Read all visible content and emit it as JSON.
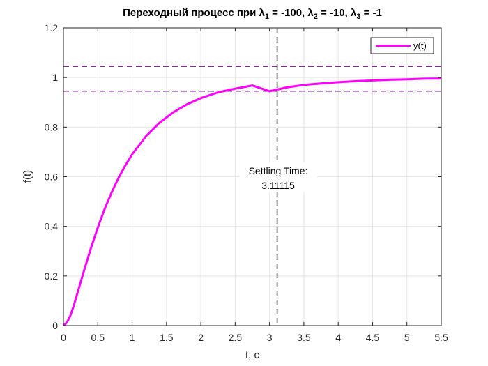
{
  "chart_data": {
    "type": "line",
    "title_parts": {
      "prefix": "Переходный процесс при λ",
      "sub1": "1",
      "mid1": " = -100, λ",
      "sub2": "2",
      "mid2": " = -10, λ",
      "sub3": "3",
      "suffix": " = -1"
    },
    "xlabel": "t, c",
    "ylabel": "f(t)",
    "xlim": [
      0,
      5.5
    ],
    "ylim": [
      0,
      1.2
    ],
    "xticks": [
      "0",
      "0.5",
      "1",
      "1.5",
      "2",
      "2.5",
      "3",
      "3.5",
      "4",
      "4.5",
      "5",
      "5.5"
    ],
    "yticks": [
      "0",
      "0.2",
      "0.4",
      "0.6",
      "0.8",
      "1",
      "1.2"
    ],
    "grid": true,
    "legend_position": "top-right",
    "series": [
      {
        "name": "y(t)",
        "color": "#ff00ff",
        "x": [
          0,
          0.05,
          0.1,
          0.15,
          0.2,
          0.3,
          0.4,
          0.5,
          0.6,
          0.7,
          0.8,
          0.9,
          1.0,
          1.2,
          1.4,
          1.6,
          1.8,
          2.0,
          2.25,
          2.5,
          2.75,
          3.0,
          3.25,
          3.5,
          3.75,
          4.0,
          4.25,
          4.5,
          4.75,
          5.0,
          5.25,
          5.5
        ],
        "y": [
          0,
          0.012,
          0.04,
          0.08,
          0.127,
          0.222,
          0.312,
          0.395,
          0.47,
          0.536,
          0.594,
          0.645,
          0.69,
          0.763,
          0.818,
          0.86,
          0.892,
          0.917,
          0.94,
          0.955,
          0.968,
          0.9445,
          0.96,
          0.97,
          0.976,
          0.981,
          0.985,
          0.988,
          0.991,
          0.993,
          0.995,
          0.996
        ]
      }
    ],
    "reference_lines": {
      "upper_band": 1.045,
      "lower_band": 0.945,
      "band_color": "#7e2f8e",
      "settling_time_x": 3.11115,
      "settling_color": "#404040"
    },
    "annotation": {
      "line1": "Settling Time:",
      "line2": "3.11115",
      "x": 3.11115,
      "y": 0.64
    }
  }
}
